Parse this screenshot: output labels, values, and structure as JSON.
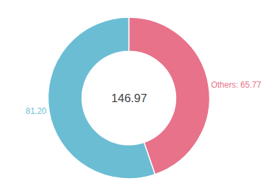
{
  "chart_data": {
    "type": "pie",
    "values": [
      65.77,
      81.2
    ],
    "value_labels": [
      "Others: 65.77",
      "81.20"
    ],
    "colors": [
      "#E8728A",
      "#6BBDD4"
    ],
    "annotations": [
      "146.97"
    ]
  }
}
